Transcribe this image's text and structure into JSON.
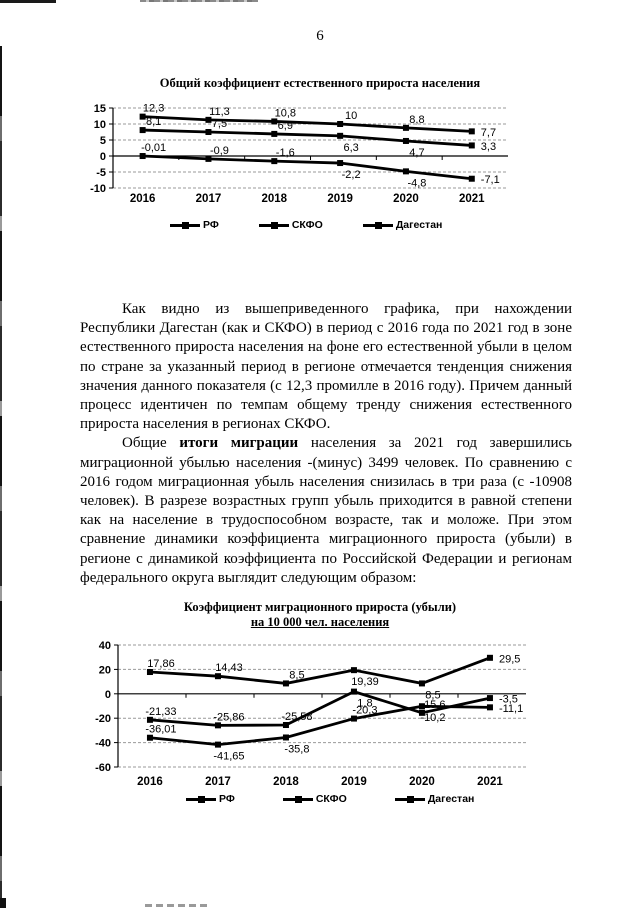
{
  "page": {
    "number": "6"
  },
  "paragraphs": {
    "p1": "Как видно из вышеприведенного графика, при нахождении Республики Дагестан (как и СКФО) в период с 2016 года по 2021 год в зоне естественного прироста населения на фоне его естественной убыли в целом по стране за указанный период в регионе отмечается тенденция снижения значения данного показателя (с 12,3 промилле в 2016 году). Причем данный процесс идентичен по темпам общему тренду снижения естественного прироста населения в регионах СКФО.",
    "p2_lead": "Общие ",
    "p2_bold": "итоги миграции",
    "p2_rest": " населения за 2021 год завершились миграционной убылью населения -(минус) 3499 человек. По сравнению с 2016 годом миграционная убыль населения снизилась в три раза (с -10908 человек). В разрезе возрастных групп убыль приходится в равной степени как на население в трудоспособном возрасте, так и моложе. При этом сравнение динамики коэффициента миграционного прироста (убыли) в регионе с динамикой коэффициента по Российской Федерации и регионам федерального округа выглядит следующим образом:"
  },
  "chart_data": [
    {
      "type": "line",
      "title": "Общий коэффициент естественного прироста населения",
      "categories": [
        "2016",
        "2017",
        "2018",
        "2019",
        "2020",
        "2021"
      ],
      "ylim": [
        -10,
        15
      ],
      "yticks": [
        15,
        10,
        5,
        0,
        -5,
        -10
      ],
      "grid": true,
      "legend_position": "bottom",
      "colors": {
        "line": "#000000",
        "grid": "#999999"
      },
      "series": [
        {
          "name": "РФ",
          "values": [
            -0.01,
            -0.9,
            -1.6,
            -2.2,
            -4.8,
            -7.1
          ],
          "labels": [
            "-0,01",
            "-0,9",
            "-1,6",
            "-2,2",
            "-4,8",
            "-7,1"
          ],
          "label_pos": [
            "above",
            "above",
            "above",
            "below",
            "below",
            "right"
          ]
        },
        {
          "name": "СКФО",
          "values": [
            8.1,
            7.5,
            6.9,
            6.3,
            4.7,
            3.3
          ],
          "labels": [
            "8,1",
            "7,5",
            "6,9",
            "6,3",
            "4,7",
            "3,3"
          ],
          "label_pos": [
            "above",
            "above",
            "above",
            "below",
            "below",
            "right"
          ]
        },
        {
          "name": "Дагестан",
          "values": [
            12.3,
            11.3,
            10.8,
            10,
            8.8,
            7.7
          ],
          "labels": [
            "12,3",
            "11,3",
            "10,8",
            "10",
            "8,8",
            "7,7"
          ],
          "label_pos": [
            "above",
            "above",
            "above",
            "above",
            "above",
            "right"
          ]
        }
      ]
    },
    {
      "type": "line",
      "title": "Коэффициент миграционного прироста (убыли)",
      "subtitle": "на 10 000 чел. населения",
      "categories": [
        "2016",
        "2017",
        "2018",
        "2019",
        "2020",
        "2021"
      ],
      "ylim": [
        -60,
        40
      ],
      "yticks": [
        40,
        20,
        0,
        -20,
        -40,
        -60
      ],
      "grid": true,
      "legend_position": "bottom",
      "colors": {
        "line": "#000000",
        "grid": "#999999"
      },
      "series": [
        {
          "name": "РФ",
          "values": [
            17.86,
            14.43,
            8.5,
            19.39,
            8.5,
            29.5
          ],
          "labels": [
            "17,86",
            "14,43",
            "8,5",
            "19,39",
            "8,5",
            "29,5"
          ],
          "label_pos": [
            "above",
            "above",
            "above",
            "below",
            "below",
            "right"
          ]
        },
        {
          "name": "СКФО",
          "values": [
            -21.33,
            -25.86,
            -25.58,
            1.8,
            -15.6,
            -3.5
          ],
          "labels": [
            "-21,33",
            "-25,86",
            "-25,58",
            "1,8",
            "-15,6",
            "-3,5"
          ],
          "label_pos": [
            "above",
            "above",
            "above",
            "below",
            "above",
            "right"
          ]
        },
        {
          "name": "Дагестан",
          "values": [
            -36.01,
            -41.65,
            -35.8,
            -20.3,
            -10.2,
            -11.1
          ],
          "labels": [
            "-36,01",
            "-41,65",
            "-35,8",
            "-20,3",
            "-10,2",
            "-11,1"
          ],
          "label_pos": [
            "above",
            "below",
            "below",
            "above",
            "below",
            "right"
          ]
        }
      ]
    }
  ]
}
